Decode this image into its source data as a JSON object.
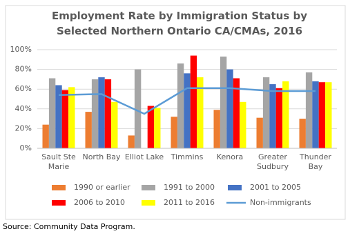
{
  "chart_data": {
    "type": "bar",
    "title": "Employment Rate by Immigration Status by Selected Northern Ontario CA/CMAs, 2016",
    "categories": [
      "Sault Ste Marie",
      "North Bay",
      "Elliot Lake",
      "Timmins",
      "Kenora",
      "Greater Sudbury",
      "Thunder Bay"
    ],
    "series": [
      {
        "name": "1990 or earlier",
        "color": "#ED7D31",
        "values": [
          24,
          37,
          13,
          32,
          39,
          31,
          30
        ]
      },
      {
        "name": "1991 to 2000",
        "color": "#A5A5A5",
        "values": [
          71,
          70,
          80,
          86,
          93,
          72,
          77
        ]
      },
      {
        "name": "2001 to 2005",
        "color": "#4472C4",
        "values": [
          64,
          72,
          null,
          76,
          80,
          65,
          68
        ]
      },
      {
        "name": "2006 to 2010",
        "color": "#FF0000",
        "values": [
          59,
          70,
          43,
          94,
          71,
          61,
          67
        ]
      },
      {
        "name": "2011 to 2016",
        "color": "#FFFF00",
        "values": [
          62,
          47,
          41,
          72,
          47,
          68,
          67
        ]
      },
      {
        "name": "Non-immigrants",
        "color": "#5B9BD5",
        "type": "line",
        "values": [
          54,
          55,
          35,
          61,
          61,
          58,
          58
        ]
      }
    ],
    "ylim": [
      0,
      100
    ],
    "yticks": [
      {
        "value": 0,
        "label": "0%"
      },
      {
        "value": 20,
        "label": "20%"
      },
      {
        "value": 40,
        "label": "40%"
      },
      {
        "value": 60,
        "label": "60%"
      },
      {
        "value": 80,
        "label": "80%"
      },
      {
        "value": 100,
        "label": "100%"
      }
    ],
    "grid": true,
    "legend": "bottom"
  },
  "source": "Source: Community Data Program."
}
